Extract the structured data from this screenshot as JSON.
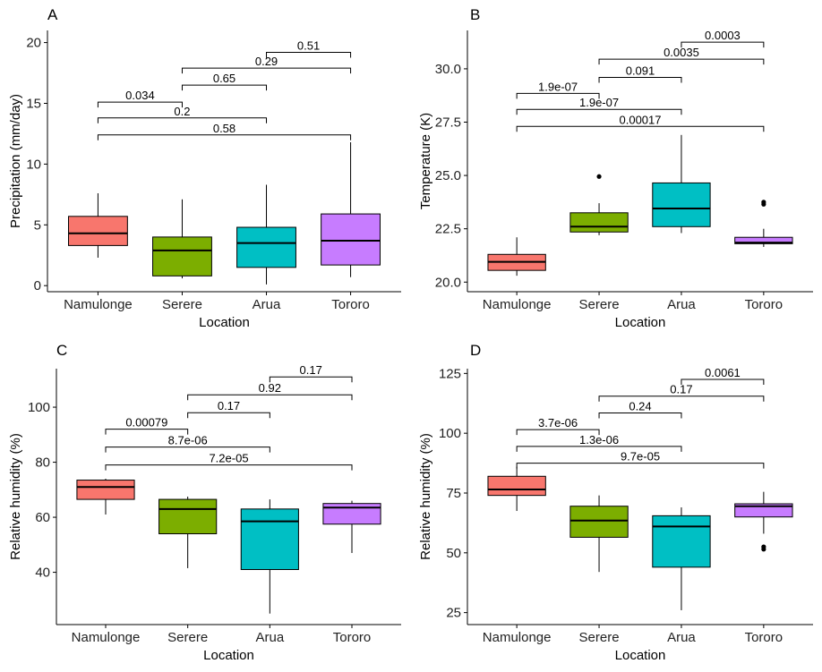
{
  "chart_data": [
    {
      "panel": "A",
      "type": "box",
      "xlabel": "Location",
      "ylabel": "Precipitation (mm/day)",
      "ylim": [
        -0.5,
        21.0
      ],
      "yticks": [
        0,
        5,
        10,
        15,
        20
      ],
      "categories": [
        "Namulonge",
        "Serere",
        "Arua",
        "Tororo"
      ],
      "colors": [
        "#F8766D",
        "#7CAE00",
        "#00BFC4",
        "#C77CFF"
      ],
      "boxes": [
        {
          "q1": 3.3,
          "median": 4.3,
          "q3": 5.7,
          "whisker_low": 2.3,
          "whisker_high": 7.6,
          "outliers": []
        },
        {
          "q1": 0.8,
          "median": 2.9,
          "q3": 4.0,
          "whisker_low": 0.6,
          "whisker_high": 7.1,
          "outliers": []
        },
        {
          "q1": 1.5,
          "median": 3.5,
          "q3": 4.8,
          "whisker_low": 0.1,
          "whisker_high": 8.3,
          "outliers": []
        },
        {
          "q1": 1.7,
          "median": 3.7,
          "q3": 5.9,
          "whisker_low": 0.7,
          "whisker_high": 11.8,
          "outliers": []
        }
      ],
      "comparisons": [
        {
          "from": 0,
          "to": 1,
          "y": 15.1,
          "label": "0.034"
        },
        {
          "from": 0,
          "to": 2,
          "y": 13.8,
          "label": "0.2"
        },
        {
          "from": 0,
          "to": 3,
          "y": 12.4,
          "label": "0.58"
        },
        {
          "from": 1,
          "to": 2,
          "y": 16.5,
          "label": "0.65"
        },
        {
          "from": 1,
          "to": 3,
          "y": 17.9,
          "label": "0.29"
        },
        {
          "from": 2,
          "to": 3,
          "y": 19.2,
          "label": "0.51"
        }
      ]
    },
    {
      "panel": "B",
      "type": "box",
      "xlabel": "Location",
      "ylabel": "Temperature (K)",
      "ylim": [
        19.55,
        31.8
      ],
      "yticks": [
        20.0,
        22.5,
        25.0,
        27.5,
        30.0
      ],
      "ytick_labels": [
        "20.0",
        "22.5",
        "25.0",
        "27.5",
        "30.0"
      ],
      "categories": [
        "Namulonge",
        "Serere",
        "Arua",
        "Tororo"
      ],
      "colors": [
        "#F8766D",
        "#7CAE00",
        "#00BFC4",
        "#C77CFF"
      ],
      "boxes": [
        {
          "q1": 20.55,
          "median": 20.95,
          "q3": 21.3,
          "whisker_low": 20.3,
          "whisker_high": 22.1,
          "outliers": []
        },
        {
          "q1": 22.35,
          "median": 22.6,
          "q3": 23.25,
          "whisker_low": 22.2,
          "whisker_high": 23.7,
          "outliers": [
            24.95
          ]
        },
        {
          "q1": 22.6,
          "median": 23.45,
          "q3": 24.65,
          "whisker_low": 22.3,
          "whisker_high": 26.9,
          "outliers": []
        },
        {
          "q1": 21.8,
          "median": 21.85,
          "q3": 22.1,
          "whisker_low": 21.65,
          "whisker_high": 22.5,
          "outliers": [
            23.65,
            23.75
          ]
        }
      ],
      "comparisons": [
        {
          "from": 0,
          "to": 1,
          "y": 28.85,
          "label": "1.9e-07"
        },
        {
          "from": 0,
          "to": 2,
          "y": 28.1,
          "label": "1.9e-07"
        },
        {
          "from": 0,
          "to": 3,
          "y": 27.3,
          "label": "0.00017"
        },
        {
          "from": 1,
          "to": 2,
          "y": 29.6,
          "label": "0.091"
        },
        {
          "from": 1,
          "to": 3,
          "y": 30.45,
          "label": "0.0035"
        },
        {
          "from": 2,
          "to": 3,
          "y": 31.25,
          "label": "0.0003"
        }
      ]
    },
    {
      "panel": "C",
      "type": "box",
      "xlabel": "Location",
      "ylabel": "Relative humidity (%)",
      "ylim": [
        21.0,
        114.0
      ],
      "yticks": [
        40,
        60,
        80,
        100
      ],
      "categories": [
        "Namulonge",
        "Serere",
        "Arua",
        "Tororo"
      ],
      "colors": [
        "#F8766D",
        "#7CAE00",
        "#00BFC4",
        "#C77CFF"
      ],
      "boxes": [
        {
          "q1": 66.5,
          "median": 71.0,
          "q3": 73.5,
          "whisker_low": 61.0,
          "whisker_high": 74.0,
          "outliers": []
        },
        {
          "q1": 54.0,
          "median": 63.0,
          "q3": 66.5,
          "whisker_low": 41.5,
          "whisker_high": 67.5,
          "outliers": []
        },
        {
          "q1": 41.0,
          "median": 58.5,
          "q3": 63.0,
          "whisker_low": 25.0,
          "whisker_high": 66.5,
          "outliers": []
        },
        {
          "q1": 57.5,
          "median": 63.5,
          "q3": 65.0,
          "whisker_low": 47.0,
          "whisker_high": 66.0,
          "outliers": []
        }
      ],
      "comparisons": [
        {
          "from": 0,
          "to": 1,
          "y": 92.0,
          "label": "0.00079"
        },
        {
          "from": 0,
          "to": 2,
          "y": 85.5,
          "label": "8.7e-06"
        },
        {
          "from": 0,
          "to": 3,
          "y": 79.0,
          "label": "7.2e-05"
        },
        {
          "from": 1,
          "to": 2,
          "y": 98.0,
          "label": "0.17"
        },
        {
          "from": 1,
          "to": 3,
          "y": 104.5,
          "label": "0.92"
        },
        {
          "from": 2,
          "to": 3,
          "y": 111.0,
          "label": "0.17"
        }
      ]
    },
    {
      "panel": "D",
      "type": "box",
      "xlabel": "Location",
      "ylabel": "Relative humidity (%)",
      "ylim": [
        20.0,
        127.0
      ],
      "yticks": [
        25,
        50,
        75,
        100,
        125
      ],
      "categories": [
        "Namulonge",
        "Serere",
        "Arua",
        "Tororo"
      ],
      "colors": [
        "#F8766D",
        "#7CAE00",
        "#00BFC4",
        "#C77CFF"
      ],
      "boxes": [
        {
          "q1": 74.0,
          "median": 76.5,
          "q3": 82.0,
          "whisker_low": 67.5,
          "whisker_high": 86.0,
          "outliers": []
        },
        {
          "q1": 56.5,
          "median": 63.5,
          "q3": 69.5,
          "whisker_low": 42.0,
          "whisker_high": 74.0,
          "outliers": []
        },
        {
          "q1": 44.0,
          "median": 61.0,
          "q3": 65.5,
          "whisker_low": 26.0,
          "whisker_high": 69.0,
          "outliers": []
        },
        {
          "q1": 65.0,
          "median": 69.5,
          "q3": 70.5,
          "whisker_low": 58.0,
          "whisker_high": 75.5,
          "outliers": [
            51.5,
            52.5
          ]
        }
      ],
      "comparisons": [
        {
          "from": 0,
          "to": 1,
          "y": 101.5,
          "label": "3.7e-06"
        },
        {
          "from": 0,
          "to": 2,
          "y": 94.5,
          "label": "1.3e-06"
        },
        {
          "from": 0,
          "to": 3,
          "y": 87.5,
          "label": "9.7e-05"
        },
        {
          "from": 1,
          "to": 2,
          "y": 108.5,
          "label": "0.24"
        },
        {
          "from": 1,
          "to": 3,
          "y": 115.5,
          "label": "0.17"
        },
        {
          "from": 2,
          "to": 3,
          "y": 122.5,
          "label": "0.0061"
        }
      ]
    }
  ]
}
